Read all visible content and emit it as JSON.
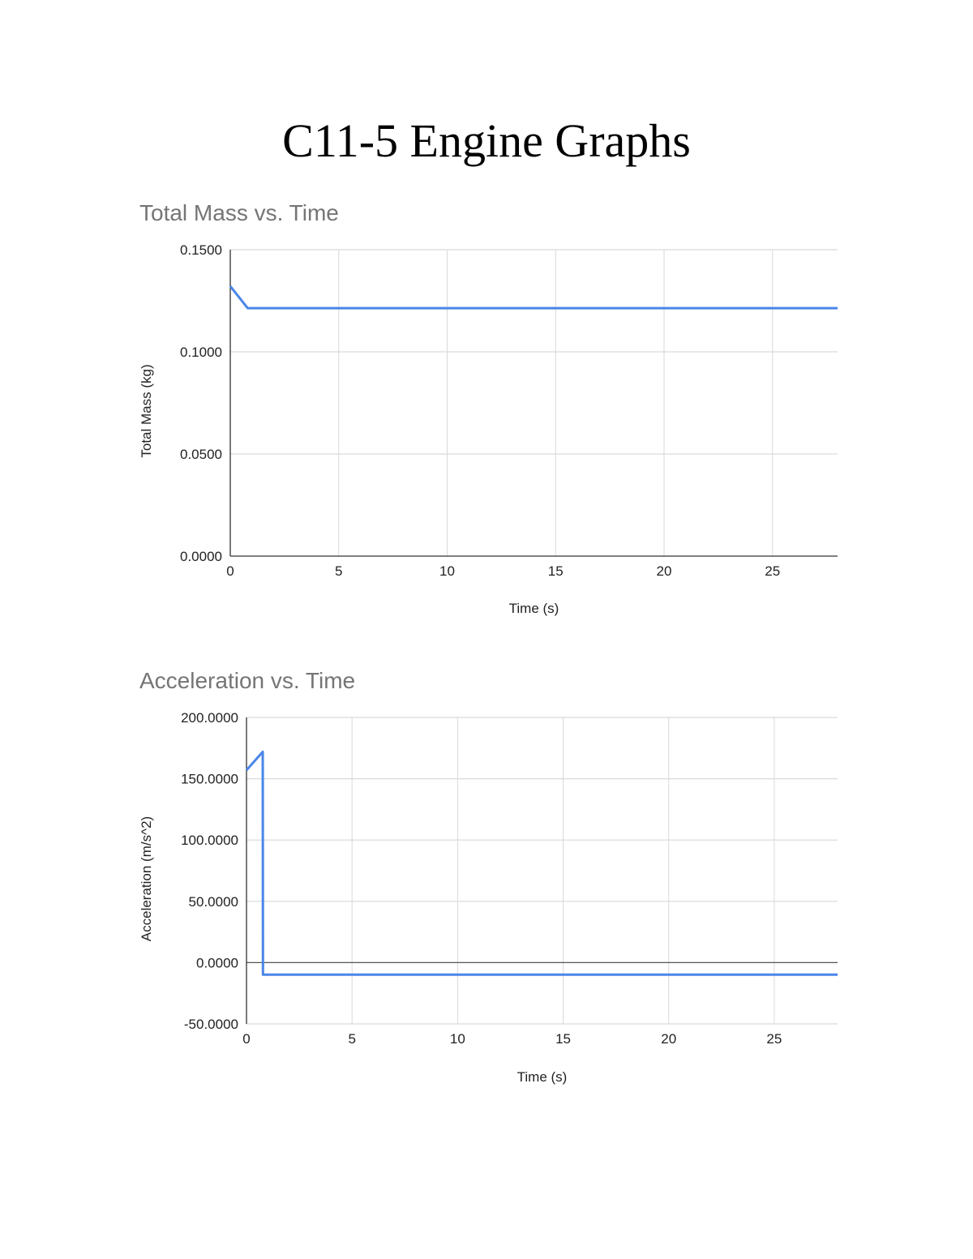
{
  "document": {
    "title": "C11-5 Engine Graphs"
  },
  "colors": {
    "series": "#4a86e8",
    "grid": "#d9d9d9",
    "axis": "#333333",
    "title": "#757575"
  },
  "chart_data": [
    {
      "type": "line",
      "title": "Total Mass vs. Time",
      "xlabel": "Time (s)",
      "ylabel": "Total Mass (kg)",
      "xlim": [
        0,
        28
      ],
      "ylim": [
        0,
        0.15
      ],
      "x_ticks": [
        "0",
        "5",
        "10",
        "15",
        "20",
        "25"
      ],
      "y_ticks": [
        "0.0000",
        "0.0500",
        "0.1000",
        "0.1500"
      ],
      "grid": true,
      "legend": "none",
      "series": [
        {
          "name": "Total Mass",
          "x": [
            0,
            0.8,
            28
          ],
          "values": [
            0.1321,
            0.1214,
            0.1214
          ]
        }
      ]
    },
    {
      "type": "line",
      "title": "Acceleration vs. Time",
      "xlabel": "Time (s)",
      "ylabel": "Acceleration (m/s^2)",
      "xlim": [
        0,
        28
      ],
      "ylim": [
        -50,
        200
      ],
      "x_ticks": [
        "0",
        "5",
        "10",
        "15",
        "20",
        "25"
      ],
      "y_ticks": [
        "-50.0000",
        "0.0000",
        "50.0000",
        "100.0000",
        "150.0000",
        "200.0000"
      ],
      "grid": true,
      "legend": "none",
      "series": [
        {
          "name": "Acceleration",
          "x": [
            0,
            0.77,
            0.78,
            28
          ],
          "values": [
            157,
            172,
            -9.8,
            -9.8
          ]
        }
      ]
    }
  ]
}
